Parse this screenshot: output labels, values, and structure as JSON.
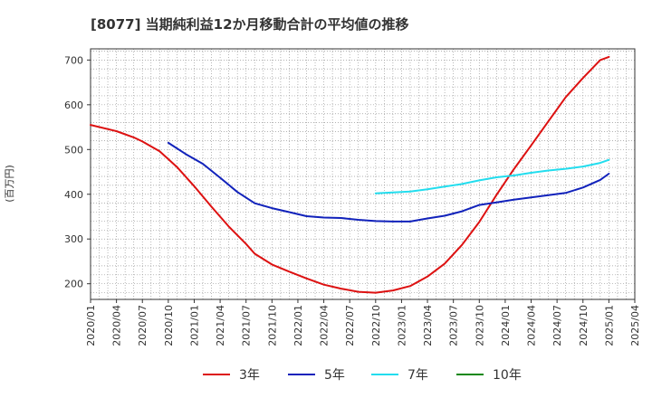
{
  "chart_data": {
    "type": "line",
    "title": "[8077]  当期純利益12か月移動合計の平均値の推移",
    "ylabel": "(百万円)",
    "xlabel": "",
    "ylim": [
      165,
      725
    ],
    "yticks": [
      200,
      300,
      400,
      500,
      600,
      700
    ],
    "x_range": [
      "2020-01",
      "2025-04"
    ],
    "x_ticks": [
      "2020/01",
      "2020/04",
      "2020/07",
      "2020/10",
      "2021/01",
      "2021/04",
      "2021/07",
      "2021/10",
      "2022/01",
      "2022/04",
      "2022/07",
      "2022/10",
      "2023/01",
      "2023/04",
      "2023/07",
      "2023/10",
      "2024/01",
      "2024/04",
      "2024/07",
      "2024/10",
      "2025/01",
      "2025/04"
    ],
    "grid": true,
    "legend_position": "bottom",
    "series": [
      {
        "name": "3年",
        "color": "#dd1111",
        "points": [
          [
            "2020-01",
            555
          ],
          [
            "2020-04",
            541
          ],
          [
            "2020-06",
            527
          ],
          [
            "2020-07",
            518
          ],
          [
            "2020-09",
            496
          ],
          [
            "2020-11",
            461
          ],
          [
            "2021-01",
            418
          ],
          [
            "2021-03",
            372
          ],
          [
            "2021-05",
            328
          ],
          [
            "2021-07",
            289
          ],
          [
            "2021-08",
            267
          ],
          [
            "2021-10",
            243
          ],
          [
            "2021-12",
            227
          ],
          [
            "2022-02",
            212
          ],
          [
            "2022-04",
            198
          ],
          [
            "2022-06",
            189
          ],
          [
            "2022-08",
            182
          ],
          [
            "2022-10",
            180
          ],
          [
            "2022-12",
            185
          ],
          [
            "2023-02",
            195
          ],
          [
            "2023-04",
            216
          ],
          [
            "2023-06",
            245
          ],
          [
            "2023-08",
            287
          ],
          [
            "2023-10",
            338
          ],
          [
            "2023-12",
            399
          ],
          [
            "2024-02",
            456
          ],
          [
            "2024-04",
            509
          ],
          [
            "2024-06",
            563
          ],
          [
            "2024-08",
            617
          ],
          [
            "2024-10",
            660
          ],
          [
            "2024-12",
            700
          ],
          [
            "2025-01",
            707
          ]
        ]
      },
      {
        "name": "5年",
        "color": "#1122bb",
        "points": [
          [
            "2020-10",
            515
          ],
          [
            "2020-12",
            490
          ],
          [
            "2021-02",
            468
          ],
          [
            "2021-04",
            437
          ],
          [
            "2021-06",
            405
          ],
          [
            "2021-08",
            380
          ],
          [
            "2021-10",
            369
          ],
          [
            "2021-12",
            360
          ],
          [
            "2022-02",
            351
          ],
          [
            "2022-04",
            348
          ],
          [
            "2022-06",
            347
          ],
          [
            "2022-08",
            343
          ],
          [
            "2022-10",
            340
          ],
          [
            "2022-12",
            339
          ],
          [
            "2023-02",
            339
          ],
          [
            "2023-04",
            346
          ],
          [
            "2023-06",
            352
          ],
          [
            "2023-08",
            362
          ],
          [
            "2023-10",
            376
          ],
          [
            "2023-12",
            382
          ],
          [
            "2024-02",
            388
          ],
          [
            "2024-04",
            393
          ],
          [
            "2024-06",
            398
          ],
          [
            "2024-08",
            403
          ],
          [
            "2024-10",
            415
          ],
          [
            "2024-12",
            432
          ],
          [
            "2025-01",
            446
          ]
        ]
      },
      {
        "name": "7年",
        "color": "#22ddee",
        "points": [
          [
            "2022-10",
            402
          ],
          [
            "2022-12",
            404
          ],
          [
            "2023-02",
            406
          ],
          [
            "2023-04",
            411
          ],
          [
            "2023-06",
            417
          ],
          [
            "2023-08",
            423
          ],
          [
            "2023-10",
            431
          ],
          [
            "2023-12",
            438
          ],
          [
            "2024-02",
            442
          ],
          [
            "2024-04",
            448
          ],
          [
            "2024-06",
            453
          ],
          [
            "2024-08",
            457
          ],
          [
            "2024-10",
            462
          ],
          [
            "2024-12",
            470
          ],
          [
            "2025-01",
            477
          ]
        ]
      },
      {
        "name": "10年",
        "color": "#118811",
        "points": []
      }
    ]
  }
}
